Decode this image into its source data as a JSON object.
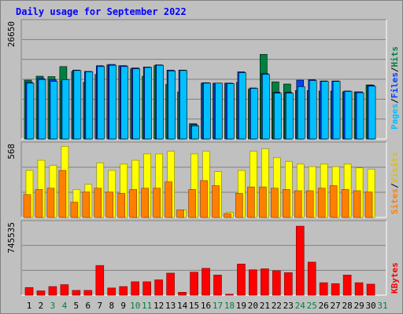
{
  "title": "Daily usage for September 2022",
  "colors": {
    "hits": "#008040",
    "files": "#0040ff",
    "pages": "#00c0ff",
    "visits": "#ffff00",
    "sites": "#ff8000",
    "kbytes": "#ff0000",
    "title": "#0000ff",
    "weekend_day": "#008040",
    "weekday": "#000000"
  },
  "chart_data": [
    {
      "type": "bar",
      "panel": "hits-files-pages",
      "ymax_label": "26650",
      "ylim": [
        0,
        26650
      ],
      "legend": {
        "pages": "Pages",
        "files": "Files",
        "hits": "Hits",
        "sep": "/"
      },
      "categories": [
        "1",
        "2",
        "3",
        "4",
        "5",
        "6",
        "7",
        "8",
        "9",
        "10",
        "11",
        "12",
        "13",
        "14",
        "15",
        "16",
        "17",
        "18",
        "19",
        "20",
        "21",
        "22",
        "23",
        "24",
        "25",
        "26",
        "27",
        "28",
        "29",
        "30",
        "31"
      ],
      "weekend_days": [
        "3",
        "4",
        "10",
        "11",
        "17",
        "18",
        "24",
        "25",
        "31"
      ],
      "series": [
        {
          "name": "Hits",
          "values": [
            13500,
            14400,
            14300,
            16600,
            15500,
            13000,
            14800,
            17000,
            16800,
            16100,
            14400,
            16800,
            12500,
            10800,
            3500,
            12800,
            12800,
            12800,
            13000,
            11400,
            19400,
            13100,
            12600,
            11100,
            11100,
            11000,
            11000,
            10800,
            10800,
            12400,
            0
          ]
        },
        {
          "name": "Files",
          "values": [
            13000,
            13900,
            13600,
            13200,
            15800,
            15500,
            16800,
            17100,
            16800,
            16300,
            16500,
            17000,
            15800,
            15800,
            3300,
            12900,
            12800,
            12800,
            15400,
            11700,
            15000,
            10700,
            10700,
            13500,
            13600,
            13300,
            13300,
            11000,
            10800,
            12300,
            0
          ]
        },
        {
          "name": "Pages",
          "values": [
            12800,
            13600,
            13200,
            13600,
            15700,
            15400,
            16600,
            16900,
            16600,
            16100,
            16400,
            16900,
            15600,
            15700,
            3000,
            12800,
            12800,
            12700,
            15200,
            11600,
            14800,
            10500,
            10500,
            12000,
            13400,
            13200,
            13200,
            10900,
            10600,
            12100,
            0
          ]
        }
      ]
    },
    {
      "type": "bar",
      "panel": "visits-sites",
      "ymax_label": "568",
      "ylim": [
        0,
        568
      ],
      "legend": {
        "sites": "Sites",
        "visits": "Visits",
        "sep": "/"
      },
      "categories": [
        "1",
        "2",
        "3",
        "4",
        "5",
        "6",
        "7",
        "8",
        "9",
        "10",
        "11",
        "12",
        "13",
        "14",
        "15",
        "16",
        "17",
        "18",
        "19",
        "20",
        "21",
        "22",
        "23",
        "24",
        "25",
        "26",
        "27",
        "28",
        "29",
        "30",
        "31"
      ],
      "series": [
        {
          "name": "Visits",
          "values": [
            370,
            450,
            410,
            560,
            220,
            260,
            430,
            370,
            420,
            450,
            500,
            500,
            520,
            60,
            500,
            520,
            360,
            40,
            370,
            520,
            540,
            470,
            440,
            420,
            400,
            420,
            400,
            420,
            390,
            380,
            0
          ]
        },
        {
          "name": "Sites",
          "values": [
            180,
            220,
            230,
            370,
            120,
            200,
            230,
            200,
            190,
            220,
            230,
            230,
            280,
            60,
            220,
            290,
            250,
            30,
            190,
            240,
            240,
            230,
            220,
            210,
            210,
            230,
            250,
            220,
            210,
            200,
            0
          ]
        }
      ]
    },
    {
      "type": "bar",
      "panel": "kbytes",
      "ymax_label": "745535",
      "ylim": [
        0,
        745535
      ],
      "legend": {
        "kbytes": "KBytes"
      },
      "categories": [
        "1",
        "2",
        "3",
        "4",
        "5",
        "6",
        "7",
        "8",
        "9",
        "10",
        "11",
        "12",
        "13",
        "14",
        "15",
        "16",
        "17",
        "18",
        "19",
        "20",
        "21",
        "22",
        "23",
        "24",
        "25",
        "26",
        "27",
        "28",
        "29",
        "30",
        "31"
      ],
      "series": [
        {
          "name": "KBytes",
          "values": [
            80000,
            45000,
            90000,
            110000,
            50000,
            50000,
            310000,
            75000,
            90000,
            140000,
            140000,
            160000,
            230000,
            30000,
            240000,
            280000,
            210000,
            10000,
            325000,
            265000,
            275000,
            255000,
            235000,
            720000,
            345000,
            130000,
            120000,
            210000,
            130000,
            115000,
            0
          ]
        }
      ]
    }
  ]
}
